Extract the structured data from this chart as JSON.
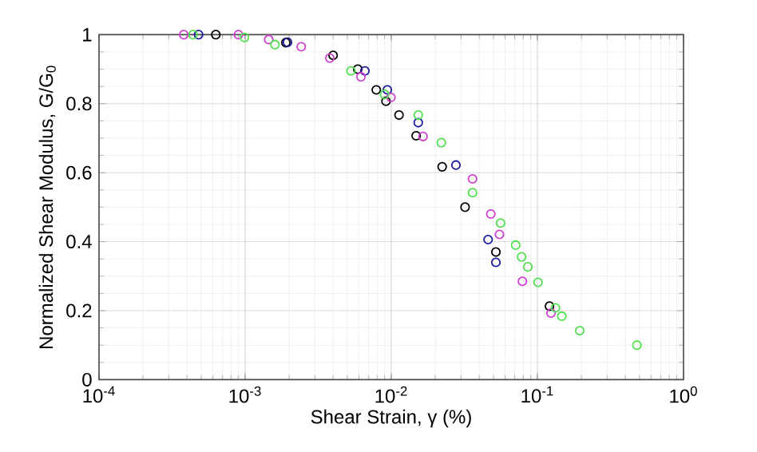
{
  "chart_data": {
    "type": "scatter",
    "xlabel": "Shear Strain, γ (%)",
    "ylabel": "Normalized Shear Modulus, G/G$_{0}$",
    "log": "x",
    "grid": true,
    "marker": "circle",
    "xlim": [
      0.0001,
      1
    ],
    "ylim": [
      0,
      1
    ],
    "xticks": [
      {
        "value": 0.0001,
        "label": "10$^{-4}$"
      },
      {
        "value": 0.001,
        "label": "10$^{-3}$"
      },
      {
        "value": 0.01,
        "label": "10$^{-2}$"
      },
      {
        "value": 0.1,
        "label": "10$^{-1}$"
      },
      {
        "value": 1,
        "label": "10$^{0}$"
      }
    ],
    "yticks": [
      0,
      0.2,
      0.4,
      0.6,
      0.8,
      1
    ],
    "series": [
      {
        "color": "#000000",
        "x": [
          0.00063,
          0.0019,
          0.004,
          0.0059,
          0.0079,
          0.0092,
          0.0113,
          0.0148,
          0.0223,
          0.032,
          0.052,
          0.121
        ],
        "values": [
          1.0,
          0.977,
          0.94,
          0.9,
          0.84,
          0.807,
          0.767,
          0.707,
          0.617,
          0.5,
          0.37,
          0.213
        ]
      },
      {
        "color": "#1c1ca0",
        "x": [
          0.00048,
          0.00195,
          0.0066,
          0.0094,
          0.0153,
          0.0277,
          0.046,
          0.052
        ],
        "values": [
          1.0,
          0.978,
          0.895,
          0.84,
          0.745,
          0.622,
          0.406,
          0.34
        ]
      },
      {
        "color": "#d040d0",
        "x": [
          0.00038,
          0.0009,
          0.00145,
          0.00242,
          0.0038,
          0.0062,
          0.00995,
          0.0165,
          0.036,
          0.048,
          0.055,
          0.079,
          0.124
        ],
        "values": [
          1.0,
          1.0,
          0.986,
          0.965,
          0.932,
          0.878,
          0.818,
          0.705,
          0.582,
          0.48,
          0.421,
          0.285,
          0.193
        ]
      },
      {
        "color": "#50e050",
        "x": [
          0.00044,
          0.00099,
          0.0016,
          0.0053,
          0.009,
          0.0153,
          0.022,
          0.036,
          0.056,
          0.071,
          0.078,
          0.086,
          0.101,
          0.133,
          0.147,
          0.195,
          0.48
        ],
        "values": [
          1.0,
          0.992,
          0.971,
          0.895,
          0.827,
          0.767,
          0.687,
          0.542,
          0.454,
          0.39,
          0.356,
          0.327,
          0.282,
          0.208,
          0.184,
          0.142,
          0.1
        ]
      }
    ]
  }
}
